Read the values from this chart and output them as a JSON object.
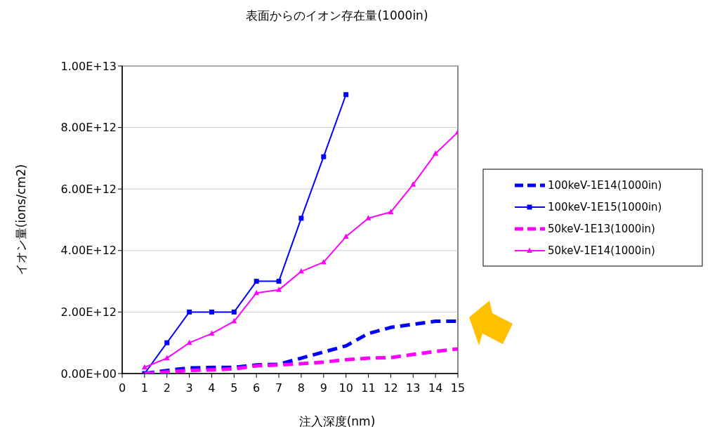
{
  "chart_data": {
    "type": "line",
    "title": "表面からのイオン存在量(1000in)",
    "xlabel": "注入深度(nm)",
    "ylabel": "イオン量(ions/cm2)",
    "x": [
      1,
      2,
      3,
      4,
      5,
      6,
      7,
      8,
      9,
      10,
      11,
      12,
      13,
      14,
      15
    ],
    "xlim": [
      0,
      15
    ],
    "xticks": [
      0,
      1,
      2,
      3,
      4,
      5,
      6,
      7,
      8,
      9,
      10,
      11,
      12,
      13,
      14,
      15
    ],
    "ylim": [
      0,
      10000000000000
    ],
    "yticks": [
      {
        "value": 0,
        "label": "0.00E+00"
      },
      {
        "value": 2000000000000,
        "label": "2.00E+12"
      },
      {
        "value": 4000000000000,
        "label": "4.00E+12"
      },
      {
        "value": 6000000000000,
        "label": "6.00E+12"
      },
      {
        "value": 8000000000000,
        "label": "8.00E+12"
      },
      {
        "value": 10000000000000,
        "label": "1.00E+13"
      }
    ],
    "grid": "y",
    "legend": "right",
    "series": [
      {
        "name": "100keV-1E14(1000in)",
        "color": "#0000ff",
        "line_style": "dashed",
        "marker": "none",
        "values": [
          0,
          100000000000,
          180000000000,
          200000000000,
          200000000000,
          280000000000,
          300000000000,
          500000000000,
          700000000000,
          900000000000,
          1300000000000,
          1500000000000,
          1600000000000,
          1700000000000,
          1700000000000
        ]
      },
      {
        "name": "100keV-1E15(1000in)",
        "color": "#0000ff",
        "line_style": "solid",
        "marker": "square",
        "values": [
          0,
          1000000000000,
          2000000000000,
          2000000000000,
          2000000000000,
          3000000000000,
          3000000000000,
          5050000000000,
          7050000000000,
          9070000000000,
          null,
          null,
          null,
          null,
          null
        ]
      },
      {
        "name": "50keV-1E13(1000in)",
        "color": "#ff00ff",
        "line_style": "dashed",
        "marker": "none",
        "values": [
          0,
          50000000000,
          100000000000,
          120000000000,
          150000000000,
          250000000000,
          280000000000,
          320000000000,
          370000000000,
          450000000000,
          500000000000,
          520000000000,
          620000000000,
          720000000000,
          800000000000
        ]
      },
      {
        "name": "50keV-1E14(1000in)",
        "color": "#ff00ff",
        "line_style": "solid",
        "marker": "triangle",
        "values": [
          200000000000,
          500000000000,
          1000000000000,
          1300000000000,
          1700000000000,
          2620000000000,
          2720000000000,
          3320000000000,
          3620000000000,
          4450000000000,
          5050000000000,
          5250000000000,
          6150000000000,
          7150000000000,
          7850000000000
        ]
      }
    ]
  }
}
